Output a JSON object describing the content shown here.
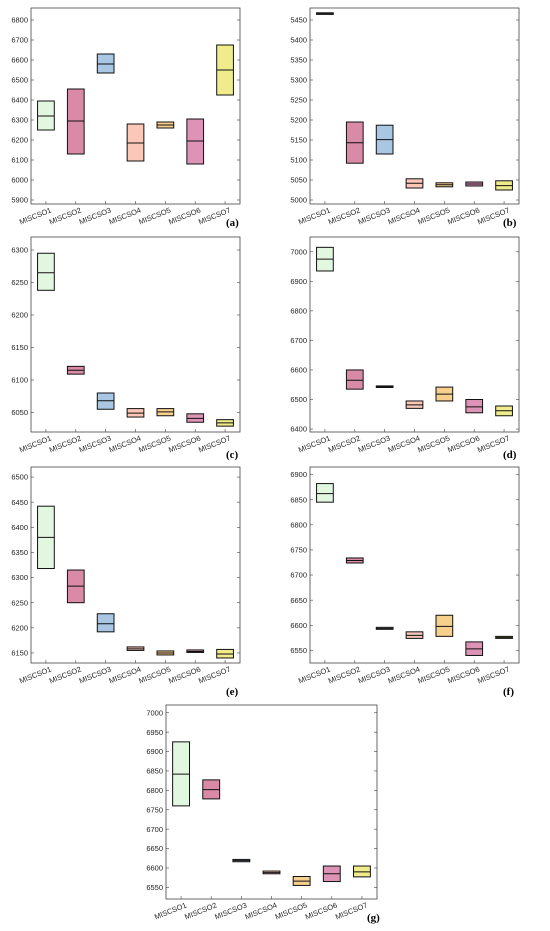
{
  "chart_data": [
    {
      "type": "box",
      "panel_label": "(a)",
      "categories": [
        "MISCSO1",
        "MISCSO2",
        "MISCSO3",
        "MISCSO4",
        "MISCSO5",
        "MISCSO6",
        "MISCSO7"
      ],
      "yticks": [
        5900,
        6000,
        6100,
        6200,
        6300,
        6400,
        6500,
        6600,
        6700,
        6800
      ],
      "ylim": [
        5880,
        6860
      ],
      "boxes": [
        {
          "low": 6250,
          "median": 6320,
          "high": 6395
        },
        {
          "low": 6130,
          "median": 6295,
          "high": 6455
        },
        {
          "low": 6535,
          "median": 6580,
          "high": 6630
        },
        {
          "low": 6095,
          "median": 6185,
          "high": 6280
        },
        {
          "low": 6260,
          "median": 6275,
          "high": 6290
        },
        {
          "low": 6080,
          "median": 6195,
          "high": 6305
        },
        {
          "low": 6425,
          "median": 6550,
          "high": 6675
        }
      ]
    },
    {
      "type": "box",
      "panel_label": "(b)",
      "categories": [
        "MISCSO1",
        "MISCSO2",
        "MISCSO3",
        "MISCSO4",
        "MISCSO5",
        "MISCSO6",
        "MISCSO7"
      ],
      "yticks": [
        5000,
        5050,
        5100,
        5150,
        5200,
        5250,
        5300,
        5350,
        5400,
        5450
      ],
      "ylim": [
        4990,
        5480
      ],
      "boxes": [
        {
          "low": 5464,
          "median": 5466,
          "high": 5468
        },
        {
          "low": 5092,
          "median": 5143,
          "high": 5195
        },
        {
          "low": 5115,
          "median": 5151,
          "high": 5187
        },
        {
          "low": 5030,
          "median": 5042,
          "high": 5053
        },
        {
          "low": 5033,
          "median": 5038,
          "high": 5043
        },
        {
          "low": 5035,
          "median": 5040,
          "high": 5045
        },
        {
          "low": 5025,
          "median": 5036,
          "high": 5048
        }
      ]
    },
    {
      "type": "box",
      "panel_label": "(c)",
      "categories": [
        "MISCSO1",
        "MISCSO2",
        "MISCSO3",
        "MISCSO4",
        "MISCSO5",
        "MISCSO6",
        "MISCSO7"
      ],
      "yticks": [
        6050,
        6100,
        6150,
        6200,
        6250,
        6300
      ],
      "ylim": [
        6020,
        6320
      ],
      "boxes": [
        {
          "low": 6238,
          "median": 6265,
          "high": 6295
        },
        {
          "low": 6109,
          "median": 6115,
          "high": 6121
        },
        {
          "low": 6055,
          "median": 6068,
          "high": 6080
        },
        {
          "low": 6043,
          "median": 6049,
          "high": 6056
        },
        {
          "low": 6045,
          "median": 6051,
          "high": 6056
        },
        {
          "low": 6035,
          "median": 6041,
          "high": 6048
        },
        {
          "low": 6029,
          "median": 6034,
          "high": 6039
        }
      ]
    },
    {
      "type": "box",
      "panel_label": "(d)",
      "categories": [
        "MISCSO1",
        "MISCSO2",
        "MISCSO3",
        "MISCSO4",
        "MISCSO5",
        "MISCSO6",
        "MISCSO7"
      ],
      "yticks": [
        6400,
        6500,
        6600,
        6700,
        6800,
        6900,
        7000
      ],
      "ylim": [
        6390,
        7050
      ],
      "boxes": [
        {
          "low": 6935,
          "median": 6975,
          "high": 7015
        },
        {
          "low": 6535,
          "median": 6565,
          "high": 6600
        },
        {
          "low": 6542,
          "median": 6544,
          "high": 6546
        },
        {
          "low": 6470,
          "median": 6482,
          "high": 6495
        },
        {
          "low": 6495,
          "median": 6518,
          "high": 6542
        },
        {
          "low": 6455,
          "median": 6475,
          "high": 6500
        },
        {
          "low": 6445,
          "median": 6462,
          "high": 6478
        }
      ]
    },
    {
      "type": "box",
      "panel_label": "(e)",
      "categories": [
        "MISCSO1",
        "MISCSO2",
        "MISCSO3",
        "MISCSO4",
        "MISCSO5",
        "MISCSO6",
        "MISCSO7"
      ],
      "yticks": [
        6150,
        6200,
        6250,
        6300,
        6350,
        6400,
        6450,
        6500
      ],
      "ylim": [
        6130,
        6520
      ],
      "boxes": [
        {
          "low": 6318,
          "median": 6380,
          "high": 6442
        },
        {
          "low": 6250,
          "median": 6283,
          "high": 6315
        },
        {
          "low": 6192,
          "median": 6208,
          "high": 6228
        },
        {
          "low": 6155,
          "median": 6158,
          "high": 6162
        },
        {
          "low": 6146,
          "median": 6150,
          "high": 6154
        },
        {
          "low": 6151,
          "median": 6153,
          "high": 6156
        },
        {
          "low": 6140,
          "median": 6148,
          "high": 6157
        }
      ]
    },
    {
      "type": "box",
      "panel_label": "(f)",
      "categories": [
        "MISCSO1",
        "MISCSO2",
        "MISCSO3",
        "MISCSO4",
        "MISCSO5",
        "MISCSO6",
        "MISCSO7"
      ],
      "yticks": [
        6550,
        6600,
        6650,
        6700,
        6750,
        6800,
        6850,
        6900
      ],
      "ylim": [
        6525,
        6915
      ],
      "boxes": [
        {
          "low": 6845,
          "median": 6862,
          "high": 6882
        },
        {
          "low": 6724,
          "median": 6729,
          "high": 6734
        },
        {
          "low": 6592,
          "median": 6594,
          "high": 6596
        },
        {
          "low": 6574,
          "median": 6580,
          "high": 6587
        },
        {
          "low": 6578,
          "median": 6598,
          "high": 6620
        },
        {
          "low": 6540,
          "median": 6553,
          "high": 6567
        },
        {
          "low": 6574,
          "median": 6576,
          "high": 6578
        }
      ]
    },
    {
      "type": "box",
      "panel_label": "(g)",
      "categories": [
        "MISCSO1",
        "MISCSO2",
        "MISCSO3",
        "MISCSO4",
        "MISCSO5",
        "MISCSO6",
        "MISCSO7"
      ],
      "yticks": [
        6550,
        6600,
        6650,
        6700,
        6750,
        6800,
        6850,
        6900,
        6950,
        7000
      ],
      "ylim": [
        6520,
        7020
      ],
      "boxes": [
        {
          "low": 6760,
          "median": 6842,
          "high": 6925
        },
        {
          "low": 6778,
          "median": 6802,
          "high": 6827
        },
        {
          "low": 6616,
          "median": 6619,
          "high": 6622
        },
        {
          "low": 6585,
          "median": 6588,
          "high": 6592
        },
        {
          "low": 6555,
          "median": 6566,
          "high": 6578
        },
        {
          "low": 6565,
          "median": 6585,
          "high": 6605
        },
        {
          "low": 6577,
          "median": 6590,
          "high": 6605
        }
      ]
    }
  ],
  "series_colors": [
    "#e2f7e0",
    "#d98aa6",
    "#a9c7e3",
    "#fbc7b9",
    "#f8d08e",
    "#dd93b6",
    "#f0ec8c"
  ]
}
